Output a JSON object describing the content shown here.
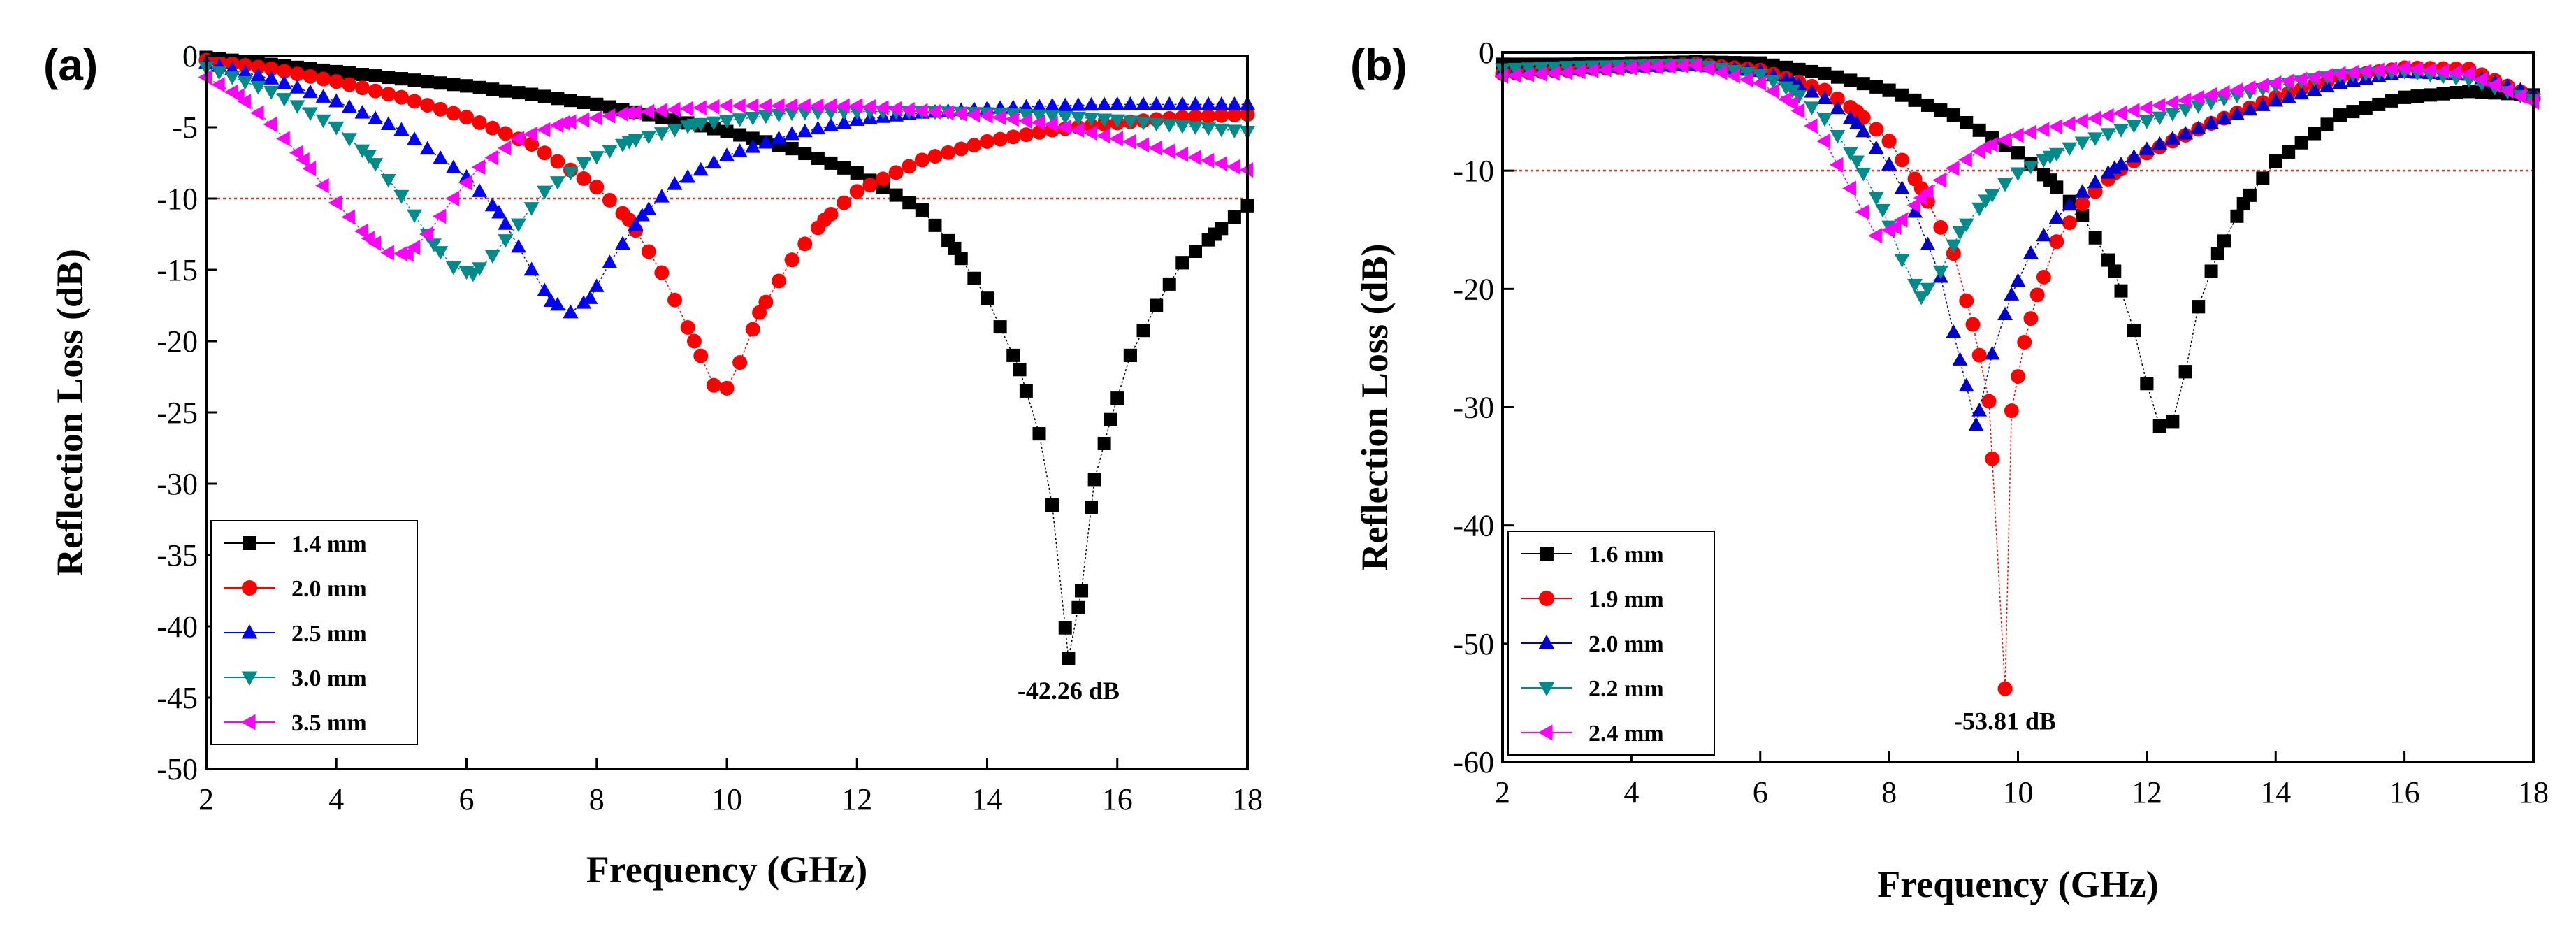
{
  "chart_data": [
    {
      "type": "line",
      "panel_label": "(a)",
      "xlabel": "Frequency (GHz)",
      "ylabel": "Reflection Loss (dB)",
      "xlim": [
        2,
        18
      ],
      "ylim": [
        -50,
        0
      ],
      "xticks": [
        2,
        4,
        6,
        8,
        10,
        12,
        14,
        16,
        18
      ],
      "xtick_labels": [
        "2",
        "4",
        "6",
        "8",
        "10",
        "12",
        "14",
        "16",
        "18"
      ],
      "yticks": [
        0,
        -5,
        -10,
        -15,
        -20,
        -25,
        -30,
        -35,
        -40,
        -45,
        -50
      ],
      "ytick_labels": [
        "0",
        "-5",
        "-10",
        "-15",
        "-20",
        "-25",
        "-30",
        "-35",
        "-40",
        "-45",
        "-50"
      ],
      "reference_line": {
        "y": -10,
        "color": "#e0302a"
      },
      "legend_position": "bottom-left",
      "series": [
        {
          "name": "1.4 mm",
          "color": "#000000",
          "marker": "square",
          "x": [
            2,
            3,
            4,
            5,
            6,
            7,
            8,
            9,
            10,
            11,
            12,
            13,
            13.5,
            14,
            14.5,
            14.8,
            15.0,
            15.25,
            15.45,
            15.65,
            15.9,
            16.2,
            16.6,
            17,
            17.5,
            18
          ],
          "y": [
            -0.1,
            -0.6,
            -1.1,
            -1.6,
            -2.1,
            -2.7,
            -3.4,
            -4.3,
            -5.3,
            -6.5,
            -8.2,
            -10.8,
            -13.5,
            -17,
            -22,
            -26.5,
            -31.5,
            -42.26,
            -37.5,
            -29.7,
            -25.5,
            -21,
            -17.5,
            -14.5,
            -12.5,
            -10.5
          ]
        },
        {
          "name": "2.0 mm",
          "color": "#ff0000",
          "marker": "circle",
          "x": [
            2,
            3,
            4,
            5,
            6,
            7,
            8,
            8.5,
            9,
            9.5,
            9.8,
            10.0,
            10.2,
            10.5,
            11,
            11.5,
            12,
            13,
            14,
            15,
            16,
            17,
            18
          ],
          "y": [
            -0.3,
            -0.9,
            -1.8,
            -2.9,
            -4.3,
            -6.2,
            -9.2,
            -11.5,
            -15.2,
            -20,
            -23.1,
            -23.3,
            -21.5,
            -18,
            -14.3,
            -11.5,
            -9.5,
            -7.3,
            -6,
            -5.2,
            -4.7,
            -4.3,
            -4.1
          ]
        },
        {
          "name": "2.5 mm",
          "color": "#0000ff",
          "marker": "triangle-up",
          "x": [
            2,
            3,
            4,
            5,
            6,
            6.5,
            7,
            7.3,
            7.6,
            7.9,
            8.2,
            8.7,
            9.2,
            10,
            11,
            12,
            13,
            14,
            15,
            16,
            17,
            18
          ],
          "y": [
            -0.5,
            -1.6,
            -3.2,
            -5.2,
            -8.5,
            -11,
            -15,
            -17.2,
            -18.0,
            -17,
            -14.5,
            -11.2,
            -9,
            -7,
            -5.5,
            -4.5,
            -4,
            -3.7,
            -3.5,
            -3.4,
            -3.4,
            -3.4
          ]
        },
        {
          "name": "3.0 mm",
          "color": "#008b8b",
          "marker": "triangle-down",
          "x": [
            2,
            3,
            4,
            4.5,
            5,
            5.5,
            5.8,
            6.1,
            6.4,
            6.8,
            7.2,
            7.8,
            8.5,
            9.5,
            11,
            12,
            13,
            14,
            15,
            16,
            17,
            18
          ],
          "y": [
            -0.8,
            -2.5,
            -5,
            -7,
            -9.8,
            -13.2,
            -14.8,
            -15.3,
            -14,
            -11.8,
            -9.5,
            -7.5,
            -6,
            -4.8,
            -4,
            -3.9,
            -3.9,
            -4,
            -4.2,
            -4.5,
            -4.9,
            -5.3
          ]
        },
        {
          "name": "3.5 mm",
          "color": "#ff00ff",
          "marker": "triangle-left",
          "x": [
            2,
            2.5,
            3,
            3.5,
            4,
            4.5,
            4.8,
            5.1,
            5.4,
            5.8,
            6.2,
            6.8,
            7.5,
            8.5,
            10,
            12,
            14,
            15,
            16,
            17,
            18
          ],
          "y": [
            -1.5,
            -2.8,
            -4.8,
            -7.3,
            -10.3,
            -12.8,
            -13.8,
            -13.9,
            -12.5,
            -10,
            -7.8,
            -5.8,
            -4.7,
            -4,
            -3.5,
            -3.5,
            -4.2,
            -4.8,
            -5.8,
            -6.9,
            -8
          ]
        }
      ],
      "annotations": [
        {
          "text": "-42.26 dB",
          "x": 15.25,
          "y": -42.26
        }
      ]
    },
    {
      "type": "line",
      "panel_label": "(b)",
      "xlabel": "Frequency (GHz)",
      "ylabel": "Reflection Loss (dB)",
      "xlim": [
        2,
        18
      ],
      "ylim": [
        -60,
        0
      ],
      "xticks": [
        2,
        4,
        6,
        8,
        10,
        12,
        14,
        16,
        18
      ],
      "xtick_labels": [
        "2",
        "4",
        "6",
        "8",
        "10",
        "12",
        "14",
        "16",
        "18"
      ],
      "yticks": [
        0,
        -10,
        -20,
        -30,
        -40,
        -50,
        -60
      ],
      "ytick_labels": [
        "0",
        "-10",
        "-20",
        "-30",
        "-40",
        "-50",
        "-60"
      ],
      "reference_line": {
        "y": -10,
        "color": "#e0302a"
      },
      "legend_position": "bottom-left",
      "series": [
        {
          "name": "1.6 mm",
          "color": "#000000",
          "marker": "square",
          "x": [
            2,
            3,
            4,
            5,
            6,
            7,
            8,
            9,
            10,
            10.5,
            11,
            11.5,
            11.8,
            12.0,
            12.2,
            12.4,
            12.6,
            12.8,
            13.1,
            13.5,
            14,
            15,
            16,
            17,
            18
          ],
          "y": [
            -1,
            -1,
            -0.9,
            -0.8,
            -0.9,
            -1.8,
            -3.2,
            -5.3,
            -8.5,
            -10.8,
            -13.8,
            -18.5,
            -23.5,
            -28,
            -31.6,
            -31.2,
            -27,
            -21.5,
            -17,
            -12.8,
            -9.2,
            -5.3,
            -3.8,
            -3.3,
            -3.6
          ]
        },
        {
          "name": "1.9 mm",
          "color": "#ff0000",
          "marker": "circle",
          "x": [
            2,
            3,
            4,
            5,
            6,
            7,
            7.5,
            8,
            8.5,
            9,
            9.3,
            9.55,
            9.8,
            9.9,
            10.1,
            10.3,
            10.6,
            11,
            11.5,
            12,
            13,
            14,
            15,
            16,
            17,
            18
          ],
          "y": [
            -1.8,
            -1.5,
            -1.2,
            -1,
            -1.5,
            -3.2,
            -5,
            -7.5,
            -11.5,
            -17,
            -23,
            -29.5,
            -53.81,
            -30.3,
            -24.5,
            -20.5,
            -16,
            -12.8,
            -10.2,
            -8.5,
            -6,
            -3.8,
            -2.1,
            -1.3,
            -1.4,
            -3.8
          ]
        },
        {
          "name": "2.0 mm",
          "color": "#0000cd",
          "marker": "triangle-up",
          "x": [
            2,
            3,
            4,
            5,
            6,
            6.5,
            7,
            7.5,
            8,
            8.4,
            8.8,
            9.1,
            9.35,
            9.6,
            9.9,
            10.2,
            10.6,
            11,
            11.5,
            12,
            13,
            14,
            15,
            16,
            17,
            18
          ],
          "y": [
            -1.6,
            -1.4,
            -1.2,
            -1.1,
            -1.6,
            -2.5,
            -3.9,
            -6,
            -9.5,
            -13.5,
            -19,
            -26,
            -31.5,
            -25.5,
            -20.5,
            -17,
            -14,
            -11.8,
            -9.8,
            -8.2,
            -6,
            -4.1,
            -2.6,
            -1.7,
            -1.9,
            -3.5
          ]
        },
        {
          "name": "2.2 mm",
          "color": "#008b8b",
          "marker": "triangle-down",
          "x": [
            2,
            3,
            4,
            5,
            6,
            6.5,
            7,
            7.5,
            7.9,
            8.2,
            8.5,
            8.8,
            9.1,
            9.5,
            10,
            10.5,
            11,
            12,
            13,
            14,
            15,
            16,
            17,
            18
          ],
          "y": [
            -1.4,
            -1.2,
            -1.1,
            -1,
            -1.9,
            -3.2,
            -5.6,
            -9.2,
            -13.3,
            -17.5,
            -20.7,
            -18.5,
            -15.2,
            -12.5,
            -10.2,
            -8.8,
            -7.6,
            -5.8,
            -4.2,
            -2.8,
            -1.9,
            -1.6,
            -2.3,
            -4
          ]
        },
        {
          "name": "2.4 mm",
          "color": "#ff00ff",
          "marker": "triangle-left",
          "x": [
            2,
            3,
            4,
            5,
            6,
            6.5,
            7,
            7.4,
            7.8,
            8.1,
            8.5,
            9,
            9.5,
            10,
            11,
            12,
            13,
            14,
            15,
            16,
            17,
            18
          ],
          "y": [
            -2,
            -1.7,
            -1.3,
            -1.1,
            -2.6,
            -4.3,
            -7.5,
            -11.5,
            -15.5,
            -14.8,
            -12.3,
            -9.8,
            -8,
            -7,
            -5.8,
            -4.7,
            -3.6,
            -2.6,
            -1.8,
            -1.3,
            -1.8,
            -4.2
          ]
        }
      ],
      "annotations": [
        {
          "text": "-53.81 dB",
          "x": 9.8,
          "y": -53.81
        }
      ]
    }
  ]
}
